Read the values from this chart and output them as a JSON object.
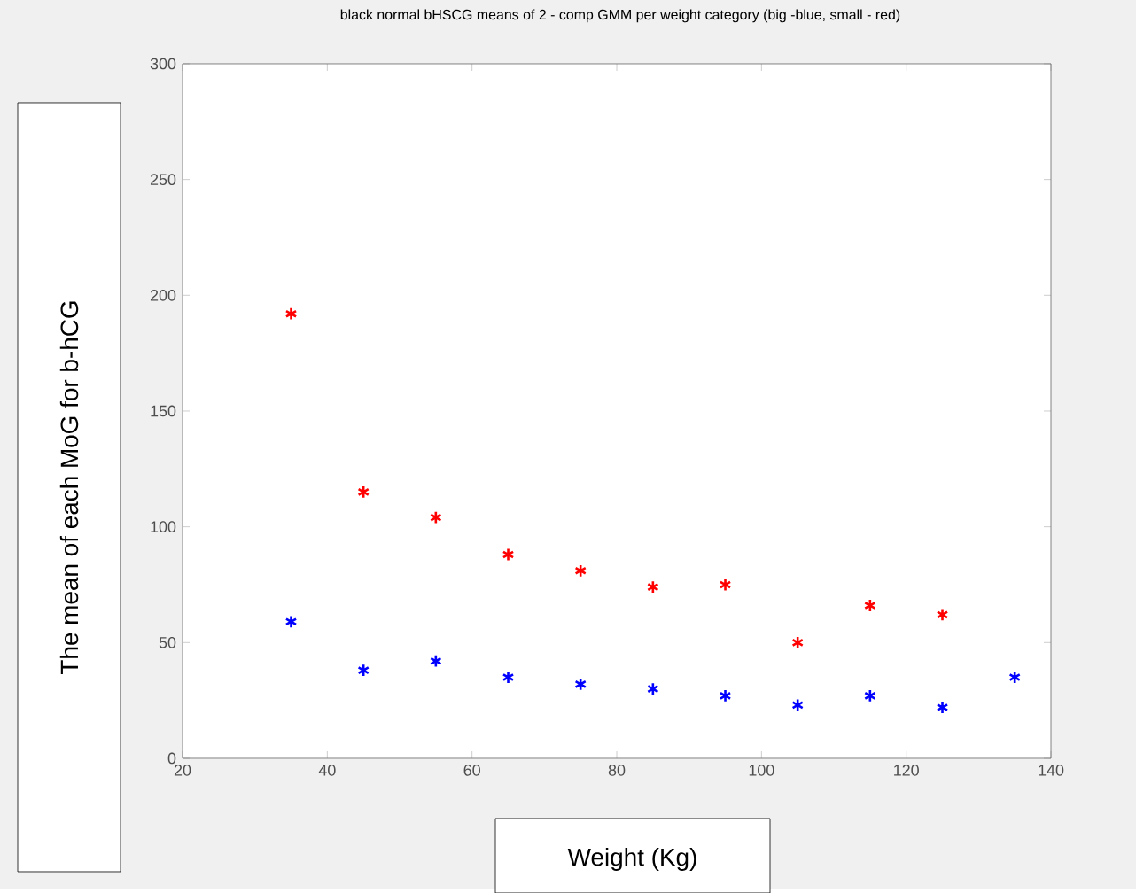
{
  "chart_data": {
    "type": "scatter",
    "title": "black normal bHSCG means of 2 - comp GMM per weight category (big -blue, small - red)",
    "xlabel": "Weight (Kg)",
    "ylabel": "The mean of each MoG for b-hCG",
    "x": [
      35,
      45,
      55,
      65,
      75,
      85,
      95,
      105,
      115,
      125,
      135
    ],
    "series": [
      {
        "color": "#ff0000",
        "values": [
          192,
          115,
          104,
          88,
          81,
          74,
          75,
          50,
          66,
          62,
          null
        ]
      },
      {
        "color": "#0000ff",
        "values": [
          59,
          38,
          42,
          35,
          32,
          30,
          27,
          23,
          27,
          22,
          35
        ]
      }
    ],
    "xlim": [
      20,
      140
    ],
    "ylim": [
      0,
      300
    ],
    "xticks": [
      20,
      40,
      60,
      80,
      100,
      120,
      140
    ],
    "yticks": [
      0,
      50,
      100,
      150,
      200,
      250,
      300
    ],
    "marker": "cross"
  }
}
